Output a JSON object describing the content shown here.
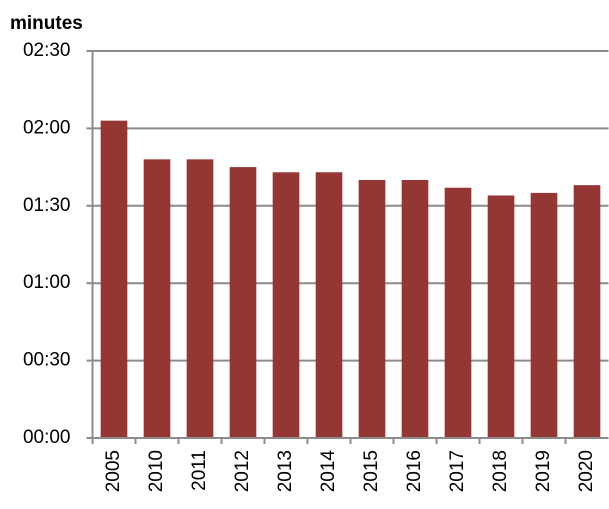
{
  "chart_data": {
    "type": "bar",
    "y_label": "minutes",
    "categories": [
      "2005",
      "2010",
      "2011",
      "2012",
      "2013",
      "2014",
      "2015",
      "2016",
      "2017",
      "2018",
      "2019",
      "2020"
    ],
    "values": [
      123,
      108,
      108,
      105,
      103,
      103,
      100,
      100,
      97,
      94,
      95,
      98
    ],
    "color": "#943634",
    "ylim": [
      0,
      150
    ],
    "yticks": [
      {
        "value": 0,
        "label": "00:00"
      },
      {
        "value": 30,
        "label": "00:30"
      },
      {
        "value": 60,
        "label": "01:00"
      },
      {
        "value": 90,
        "label": "01:30"
      },
      {
        "value": 120,
        "label": "02:00"
      },
      {
        "value": 150,
        "label": "02:30"
      }
    ],
    "grid": true
  }
}
